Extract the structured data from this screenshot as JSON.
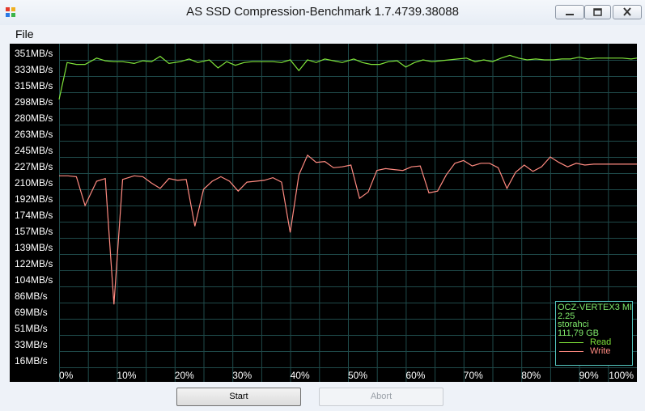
{
  "window": {
    "title": "AS SSD Compression-Benchmark 1.7.4739.38088",
    "controls": [
      "minimize-icon",
      "maximize-icon",
      "close-icon"
    ]
  },
  "menu": {
    "file": "File"
  },
  "chart_data": {
    "type": "line",
    "title": "",
    "xlabel": "",
    "ylabel": "",
    "y_tick_labels": [
      "351MB/s",
      "333MB/s",
      "315MB/s",
      "298MB/s",
      "280MB/s",
      "263MB/s",
      "245MB/s",
      "227MB/s",
      "210MB/s",
      "192MB/s",
      "174MB/s",
      "157MB/s",
      "139MB/s",
      "122MB/s",
      "104MB/s",
      "86MB/s",
      "69MB/s",
      "51MB/s",
      "33MB/s",
      "16MB/s"
    ],
    "x_tick_labels": [
      "0%",
      "10%",
      "20%",
      "30%",
      "40%",
      "50%",
      "60%",
      "70%",
      "80%",
      "90%",
      "100%"
    ],
    "xlim": [
      0,
      100
    ],
    "ylim": [
      0,
      360
    ],
    "grid": true,
    "series": [
      {
        "name": "Read",
        "color": "#7fe33a",
        "x": [
          0,
          1.4,
          3,
          4.5,
          6.5,
          8,
          9.5,
          11,
          13,
          14.5,
          16,
          17.5,
          19,
          21,
          22.5,
          24,
          26,
          27.5,
          29,
          30.5,
          32,
          33.5,
          35,
          37,
          38.5,
          40,
          41.5,
          43,
          44.5,
          46,
          47.5,
          49,
          51,
          52.5,
          54,
          55.5,
          57,
          58.5,
          60,
          61.5,
          63,
          64.5,
          66,
          67.5,
          69,
          70.5,
          72,
          73.5,
          75,
          76.5,
          78,
          79.5,
          81,
          82.5,
          84,
          85.5,
          87,
          88.5,
          90,
          91.5,
          93,
          94.5,
          96,
          97.5,
          99,
          100
        ],
        "y": [
          298,
          339,
          337,
          337,
          344,
          341,
          340,
          340,
          338,
          341,
          340,
          346,
          338,
          340,
          343,
          339,
          342,
          333,
          340,
          336,
          339,
          340,
          340,
          340,
          339,
          342,
          330,
          342,
          339,
          343,
          341,
          339,
          343,
          339,
          337,
          337,
          340,
          341,
          334,
          339,
          342,
          340,
          341,
          342,
          343,
          344,
          340,
          342,
          340,
          344,
          347,
          344,
          342,
          343,
          342,
          342,
          343,
          343,
          345,
          343,
          344,
          344,
          344,
          344,
          343,
          344
        ]
      },
      {
        "name": "Write",
        "color": "#ff8a80",
        "x": [
          0,
          1.5,
          3,
          4.5,
          6.5,
          8,
          9.5,
          11,
          13,
          14.5,
          16,
          17.5,
          19,
          20.5,
          22,
          23.5,
          25,
          26.5,
          28,
          29.5,
          31,
          32.5,
          34,
          35.5,
          37,
          38.5,
          40,
          41.5,
          43,
          44.5,
          46,
          47.5,
          49,
          50.5,
          52,
          53.5,
          55,
          56.5,
          58,
          59.5,
          61,
          62.5,
          64,
          65.5,
          67,
          68.5,
          70,
          71.5,
          73,
          74.5,
          76,
          77.5,
          79,
          80.5,
          82,
          83.5,
          85,
          86.5,
          88,
          89.5,
          91,
          92.5,
          94,
          95.5,
          97,
          98.5,
          100
        ],
        "y": [
          213,
          213,
          212,
          180,
          207,
          210,
          70,
          209,
          213,
          212,
          205,
          199,
          210,
          208,
          209,
          157,
          198,
          207,
          212,
          207,
          196,
          206,
          207,
          208,
          211,
          206,
          150,
          214,
          236,
          228,
          229,
          222,
          223,
          225,
          188,
          195,
          219,
          221,
          220,
          219,
          223,
          224,
          194,
          196,
          214,
          227,
          230,
          224,
          227,
          227,
          222,
          199,
          217,
          225,
          218,
          223,
          234,
          228,
          223,
          227,
          225,
          226,
          226,
          226,
          226,
          226,
          226
        ]
      }
    ],
    "legend_position": "bottom-right",
    "legend": {
      "device": "OCZ-VERTEX3 MI",
      "firmware": "2.25",
      "driver": "storahci",
      "capacity": "111,79 GB"
    }
  },
  "buttons": {
    "start": "Start",
    "abort": "Abort"
  }
}
